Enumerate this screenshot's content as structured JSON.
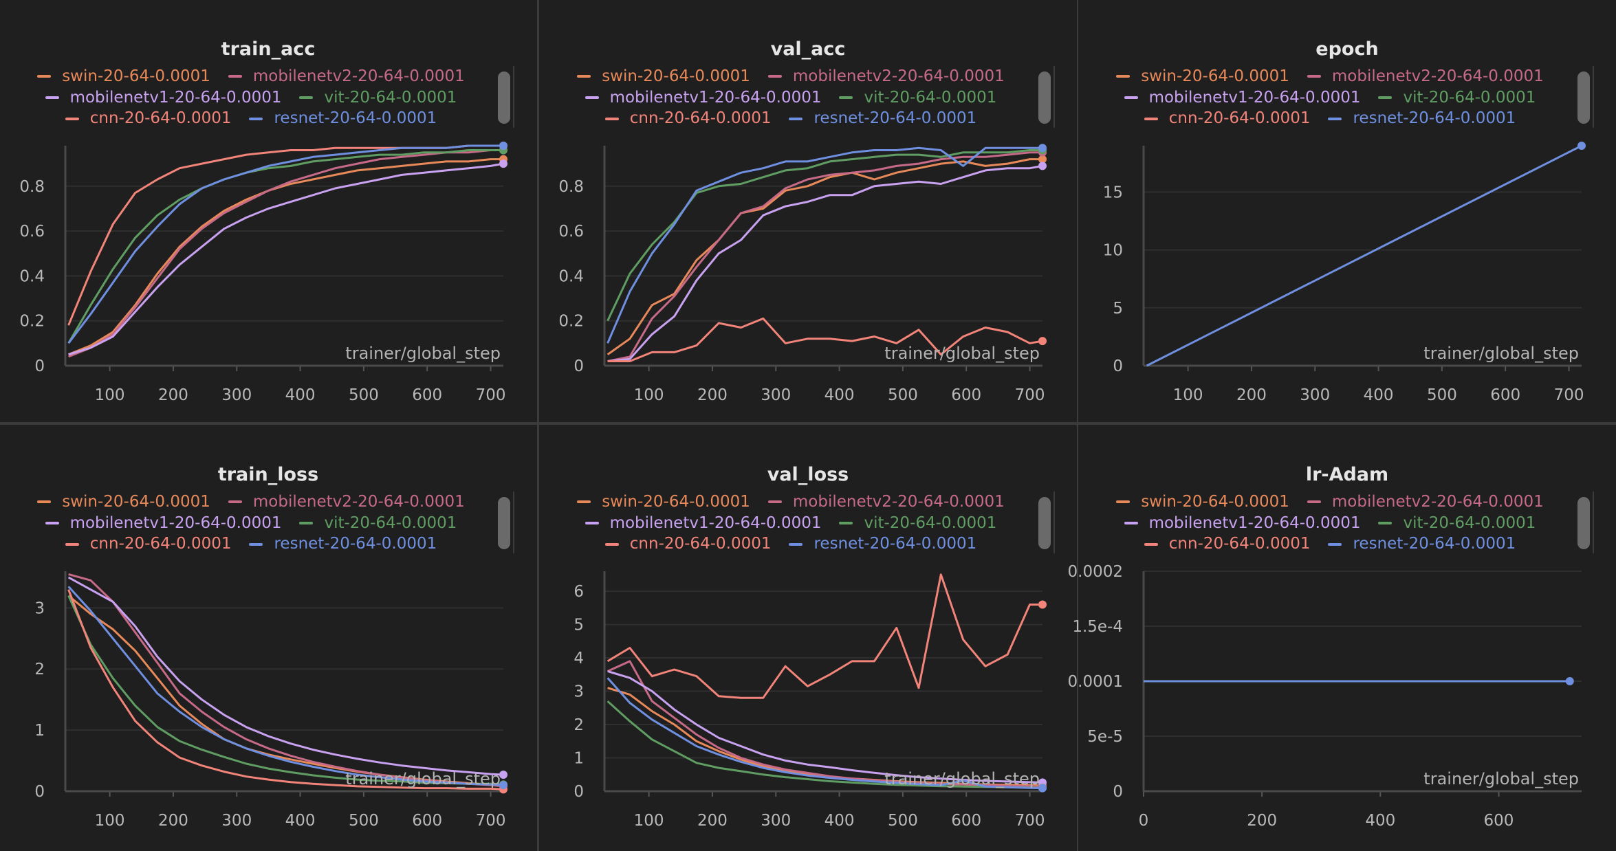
{
  "colors": {
    "swin": "#e8895a",
    "mobilenetv2": "#c76a87",
    "mobilenetv1": "#c8a2f0",
    "vit": "#5f9d63",
    "cnn": "#f2847a",
    "resnet": "#6f8fe0"
  },
  "legend": [
    {
      "key": "swin",
      "label": "swin-20-64-0.0001"
    },
    {
      "key": "mobilenetv2",
      "label": "mobilenetv2-20-64-0.0001"
    },
    {
      "key": "mobilenetv1",
      "label": "mobilenetv1-20-64-0.0001"
    },
    {
      "key": "vit",
      "label": "vit-20-64-0.0001"
    },
    {
      "key": "cnn",
      "label": "cnn-20-64-0.0001"
    },
    {
      "key": "resnet",
      "label": "resnet-20-64-0.0001"
    }
  ],
  "chart_data": [
    {
      "type": "line",
      "title": "train_acc",
      "xlabel": "trainer/global_step",
      "xlim": [
        30,
        720
      ],
      "ylim": [
        0,
        0.98
      ],
      "xticks": [
        100,
        200,
        300,
        400,
        500,
        600,
        700
      ],
      "yticks": [
        0,
        0.2,
        0.4,
        0.6,
        0.8
      ],
      "ytick_labels": [
        "0",
        "0.2",
        "0.4",
        "0.6",
        "0.8"
      ],
      "grid": true,
      "x": [
        35,
        70,
        105,
        140,
        175,
        210,
        245,
        280,
        315,
        350,
        385,
        420,
        455,
        490,
        525,
        560,
        595,
        630,
        665,
        700,
        720
      ],
      "series": [
        {
          "key": "swin",
          "values": [
            0.05,
            0.09,
            0.15,
            0.27,
            0.41,
            0.53,
            0.62,
            0.69,
            0.74,
            0.78,
            0.81,
            0.83,
            0.85,
            0.87,
            0.88,
            0.89,
            0.9,
            0.91,
            0.91,
            0.92,
            0.92
          ]
        },
        {
          "key": "mobilenetv2",
          "values": [
            0.04,
            0.08,
            0.14,
            0.26,
            0.39,
            0.52,
            0.61,
            0.68,
            0.73,
            0.78,
            0.82,
            0.85,
            0.88,
            0.9,
            0.92,
            0.93,
            0.94,
            0.95,
            0.95,
            0.96,
            0.96
          ]
        },
        {
          "key": "mobilenetv1",
          "values": [
            0.05,
            0.08,
            0.13,
            0.24,
            0.35,
            0.45,
            0.53,
            0.61,
            0.66,
            0.7,
            0.73,
            0.76,
            0.79,
            0.81,
            0.83,
            0.85,
            0.86,
            0.87,
            0.88,
            0.89,
            0.9
          ]
        },
        {
          "key": "vit",
          "values": [
            0.1,
            0.27,
            0.43,
            0.57,
            0.67,
            0.74,
            0.79,
            0.83,
            0.86,
            0.88,
            0.89,
            0.91,
            0.92,
            0.93,
            0.94,
            0.94,
            0.95,
            0.95,
            0.96,
            0.96,
            0.96
          ]
        },
        {
          "key": "cnn",
          "values": [
            0.18,
            0.42,
            0.63,
            0.77,
            0.83,
            0.88,
            0.9,
            0.92,
            0.94,
            0.95,
            0.96,
            0.96,
            0.97,
            0.97,
            0.97,
            0.97,
            0.97,
            0.97,
            0.98,
            0.98,
            0.98
          ]
        },
        {
          "key": "resnet",
          "values": [
            0.1,
            0.23,
            0.37,
            0.51,
            0.62,
            0.72,
            0.79,
            0.83,
            0.86,
            0.89,
            0.91,
            0.93,
            0.94,
            0.95,
            0.96,
            0.97,
            0.97,
            0.97,
            0.98,
            0.98,
            0.98
          ]
        }
      ]
    },
    {
      "type": "line",
      "title": "val_acc",
      "xlabel": "trainer/global_step",
      "xlim": [
        30,
        720
      ],
      "ylim": [
        0,
        0.98
      ],
      "xticks": [
        100,
        200,
        300,
        400,
        500,
        600,
        700
      ],
      "yticks": [
        0,
        0.2,
        0.4,
        0.6,
        0.8
      ],
      "ytick_labels": [
        "0",
        "0.2",
        "0.4",
        "0.6",
        "0.8"
      ],
      "grid": true,
      "x": [
        35,
        70,
        105,
        140,
        175,
        210,
        245,
        280,
        315,
        350,
        385,
        420,
        455,
        490,
        525,
        560,
        595,
        630,
        665,
        700,
        720
      ],
      "series": [
        {
          "key": "swin",
          "values": [
            0.05,
            0.12,
            0.27,
            0.32,
            0.47,
            0.56,
            0.68,
            0.7,
            0.78,
            0.8,
            0.84,
            0.86,
            0.83,
            0.86,
            0.88,
            0.9,
            0.91,
            0.89,
            0.9,
            0.92,
            0.92
          ]
        },
        {
          "key": "mobilenetv2",
          "values": [
            0.02,
            0.04,
            0.21,
            0.31,
            0.44,
            0.56,
            0.68,
            0.71,
            0.79,
            0.83,
            0.85,
            0.86,
            0.87,
            0.89,
            0.9,
            0.92,
            0.93,
            0.93,
            0.94,
            0.95,
            0.95
          ]
        },
        {
          "key": "mobilenetv1",
          "values": [
            0.02,
            0.03,
            0.14,
            0.22,
            0.38,
            0.5,
            0.56,
            0.67,
            0.71,
            0.73,
            0.76,
            0.76,
            0.8,
            0.81,
            0.82,
            0.81,
            0.84,
            0.87,
            0.88,
            0.88,
            0.89
          ]
        },
        {
          "key": "vit",
          "values": [
            0.2,
            0.41,
            0.54,
            0.64,
            0.77,
            0.8,
            0.81,
            0.84,
            0.87,
            0.88,
            0.91,
            0.92,
            0.93,
            0.94,
            0.94,
            0.93,
            0.95,
            0.95,
            0.95,
            0.96,
            0.96
          ]
        },
        {
          "key": "cnn",
          "values": [
            0.02,
            0.02,
            0.06,
            0.06,
            0.09,
            0.19,
            0.17,
            0.21,
            0.1,
            0.12,
            0.12,
            0.11,
            0.13,
            0.1,
            0.16,
            0.05,
            0.13,
            0.17,
            0.15,
            0.1,
            0.11
          ]
        },
        {
          "key": "resnet",
          "values": [
            0.1,
            0.33,
            0.5,
            0.63,
            0.78,
            0.82,
            0.86,
            0.88,
            0.91,
            0.91,
            0.93,
            0.95,
            0.96,
            0.96,
            0.97,
            0.96,
            0.89,
            0.97,
            0.97,
            0.97,
            0.97
          ]
        }
      ]
    },
    {
      "type": "line",
      "title": "epoch",
      "xlabel": "trainer/global_step",
      "xlim": [
        30,
        720
      ],
      "ylim": [
        0,
        19
      ],
      "xticks": [
        100,
        200,
        300,
        400,
        500,
        600,
        700
      ],
      "yticks": [
        0,
        5,
        10,
        15
      ],
      "ytick_labels": [
        "0",
        "5",
        "10",
        "15"
      ],
      "grid": true,
      "x": [
        35,
        720
      ],
      "series": [
        {
          "key": "resnet",
          "values": [
            0,
            19
          ]
        }
      ]
    },
    {
      "type": "line",
      "title": "train_loss",
      "xlabel": "trainer/global_step",
      "xlim": [
        30,
        720
      ],
      "ylim": [
        0,
        3.6
      ],
      "xticks": [
        100,
        200,
        300,
        400,
        500,
        600,
        700
      ],
      "yticks": [
        0,
        1,
        2,
        3
      ],
      "ytick_labels": [
        "0",
        "1",
        "2",
        "3"
      ],
      "grid": true,
      "x": [
        35,
        70,
        105,
        140,
        175,
        210,
        245,
        280,
        315,
        350,
        385,
        420,
        455,
        490,
        525,
        560,
        595,
        630,
        665,
        700,
        720
      ],
      "series": [
        {
          "key": "swin",
          "values": [
            3.2,
            2.9,
            2.65,
            2.3,
            1.85,
            1.4,
            1.1,
            0.85,
            0.7,
            0.6,
            0.52,
            0.45,
            0.38,
            0.32,
            0.27,
            0.23,
            0.19,
            0.16,
            0.13,
            0.11,
            0.1
          ]
        },
        {
          "key": "mobilenetv2",
          "values": [
            3.55,
            3.45,
            3.1,
            2.6,
            2.1,
            1.6,
            1.3,
            1.05,
            0.85,
            0.7,
            0.58,
            0.48,
            0.4,
            0.33,
            0.27,
            0.22,
            0.18,
            0.15,
            0.12,
            0.1,
            0.08
          ]
        },
        {
          "key": "mobilenetv1",
          "values": [
            3.5,
            3.3,
            3.1,
            2.7,
            2.2,
            1.8,
            1.5,
            1.25,
            1.05,
            0.9,
            0.78,
            0.68,
            0.6,
            0.53,
            0.47,
            0.42,
            0.38,
            0.34,
            0.31,
            0.28,
            0.27
          ]
        },
        {
          "key": "vit",
          "values": [
            3.2,
            2.4,
            1.85,
            1.4,
            1.05,
            0.82,
            0.68,
            0.56,
            0.45,
            0.37,
            0.31,
            0.26,
            0.22,
            0.19,
            0.17,
            0.16,
            0.14,
            0.13,
            0.12,
            0.12,
            0.11
          ]
        },
        {
          "key": "cnn",
          "values": [
            3.3,
            2.35,
            1.7,
            1.15,
            0.8,
            0.55,
            0.42,
            0.32,
            0.24,
            0.19,
            0.15,
            0.12,
            0.1,
            0.08,
            0.07,
            0.06,
            0.05,
            0.05,
            0.04,
            0.04,
            0.03
          ]
        },
        {
          "key": "resnet",
          "values": [
            3.35,
            2.95,
            2.5,
            2.05,
            1.6,
            1.3,
            1.05,
            0.85,
            0.7,
            0.58,
            0.48,
            0.4,
            0.33,
            0.27,
            0.23,
            0.19,
            0.16,
            0.14,
            0.12,
            0.11,
            0.1
          ]
        }
      ]
    },
    {
      "type": "line",
      "title": "val_loss",
      "xlabel": "trainer/global_step",
      "xlim": [
        30,
        720
      ],
      "ylim": [
        0,
        6.6
      ],
      "xticks": [
        100,
        200,
        300,
        400,
        500,
        600,
        700
      ],
      "yticks": [
        0,
        1,
        2,
        3,
        4,
        5,
        6
      ],
      "ytick_labels": [
        "0",
        "1",
        "2",
        "3",
        "4",
        "5",
        "6"
      ],
      "grid": true,
      "x": [
        35,
        70,
        105,
        140,
        175,
        210,
        245,
        280,
        315,
        350,
        385,
        420,
        455,
        490,
        525,
        560,
        595,
        630,
        665,
        700,
        720
      ],
      "series": [
        {
          "key": "swin",
          "values": [
            3.1,
            2.9,
            2.4,
            2.0,
            1.5,
            1.2,
            0.95,
            0.75,
            0.62,
            0.5,
            0.42,
            0.38,
            0.34,
            0.3,
            0.27,
            0.25,
            0.22,
            0.2,
            0.19,
            0.18,
            0.17
          ]
        },
        {
          "key": "mobilenetv2",
          "values": [
            3.6,
            3.9,
            2.7,
            2.2,
            1.7,
            1.3,
            1.0,
            0.8,
            0.65,
            0.55,
            0.45,
            0.38,
            0.33,
            0.28,
            0.25,
            0.22,
            0.2,
            0.18,
            0.16,
            0.15,
            0.14
          ]
        },
        {
          "key": "mobilenetv1",
          "values": [
            3.6,
            3.4,
            3.0,
            2.45,
            2.0,
            1.6,
            1.35,
            1.1,
            0.92,
            0.8,
            0.72,
            0.63,
            0.55,
            0.48,
            0.42,
            0.38,
            0.34,
            0.31,
            0.29,
            0.27,
            0.26
          ]
        },
        {
          "key": "vit",
          "values": [
            2.7,
            2.1,
            1.55,
            1.2,
            0.85,
            0.7,
            0.6,
            0.5,
            0.42,
            0.36,
            0.3,
            0.26,
            0.22,
            0.19,
            0.17,
            0.15,
            0.14,
            0.13,
            0.12,
            0.11,
            0.1
          ]
        },
        {
          "key": "cnn",
          "values": [
            3.9,
            4.3,
            3.45,
            3.65,
            3.45,
            2.85,
            2.8,
            2.8,
            3.75,
            3.15,
            3.5,
            3.9,
            3.9,
            4.9,
            3.1,
            6.5,
            4.55,
            3.75,
            4.1,
            5.6,
            5.6
          ]
        },
        {
          "key": "resnet",
          "values": [
            3.4,
            2.65,
            2.15,
            1.75,
            1.35,
            1.1,
            0.88,
            0.7,
            0.57,
            0.47,
            0.4,
            0.34,
            0.29,
            0.25,
            0.21,
            0.18,
            0.32,
            0.14,
            0.12,
            0.1,
            0.09
          ]
        }
      ]
    },
    {
      "type": "line",
      "title": "lr-Adam",
      "xlabel": "trainer/global_step",
      "xlim": [
        0,
        740
      ],
      "ylim": [
        0,
        0.0002
      ],
      "xticks": [
        0,
        200,
        400,
        600
      ],
      "yticks": [
        0,
        5e-05,
        0.0001,
        0.00015,
        0.0002
      ],
      "ytick_labels": [
        "0",
        "5e-5",
        "0.0001",
        "1.5e-4",
        "0.0002"
      ],
      "grid": true,
      "x": [
        0,
        720
      ],
      "series": [
        {
          "key": "resnet",
          "values": [
            0.0001,
            0.0001
          ]
        }
      ]
    }
  ]
}
